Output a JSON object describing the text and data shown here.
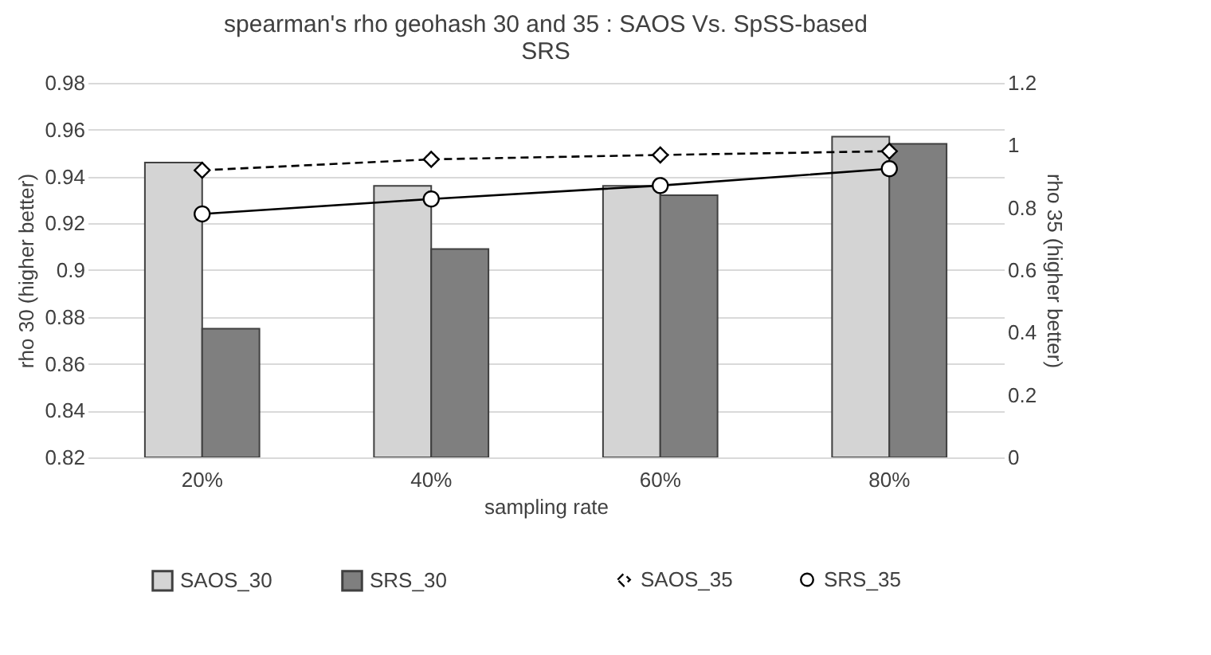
{
  "chart_data": {
    "type": "bar",
    "title": "spearman's rho  geohash  30 and 35 : SAOS Vs. SpSS-based SRS",
    "xlabel": "sampling rate",
    "ylabel": "rho 30 (higher better)",
    "y2label": "rho 35 (higher  better)",
    "categories": [
      "20%",
      "40%",
      "60%",
      "80%"
    ],
    "series": [
      {
        "name": "SAOS_30",
        "color": "#d4d4d4",
        "values": [
          0.946,
          0.936,
          0.936,
          0.957
        ]
      },
      {
        "name": "SRS_30",
        "color": "#7f7f7f",
        "values": [
          0.875,
          0.909,
          0.932,
          0.954
        ]
      },
      {
        "name": "SAOS_35",
        "type": "line",
        "axis": "y2",
        "color": "#000000",
        "marker": "diamond",
        "line_style": "dashed",
        "values": [
          0.92,
          0.955,
          0.969,
          0.981
        ]
      },
      {
        "name": "SRS_35",
        "type": "line",
        "axis": "y2",
        "color": "#000000",
        "marker": "circle",
        "line_style": "solid",
        "values": [
          0.78,
          0.828,
          0.871,
          0.925
        ]
      }
    ],
    "ylim": [
      0.82,
      0.98
    ],
    "yticks": [
      0.82,
      0.84,
      0.86,
      0.88,
      0.9,
      0.92,
      0.94,
      0.96,
      0.98
    ],
    "y2lim": [
      0,
      1.2
    ],
    "y2ticks": [
      0,
      0.2,
      0.4,
      0.6,
      0.8,
      1,
      1.2
    ],
    "grid": "y",
    "legend": "bottom"
  }
}
